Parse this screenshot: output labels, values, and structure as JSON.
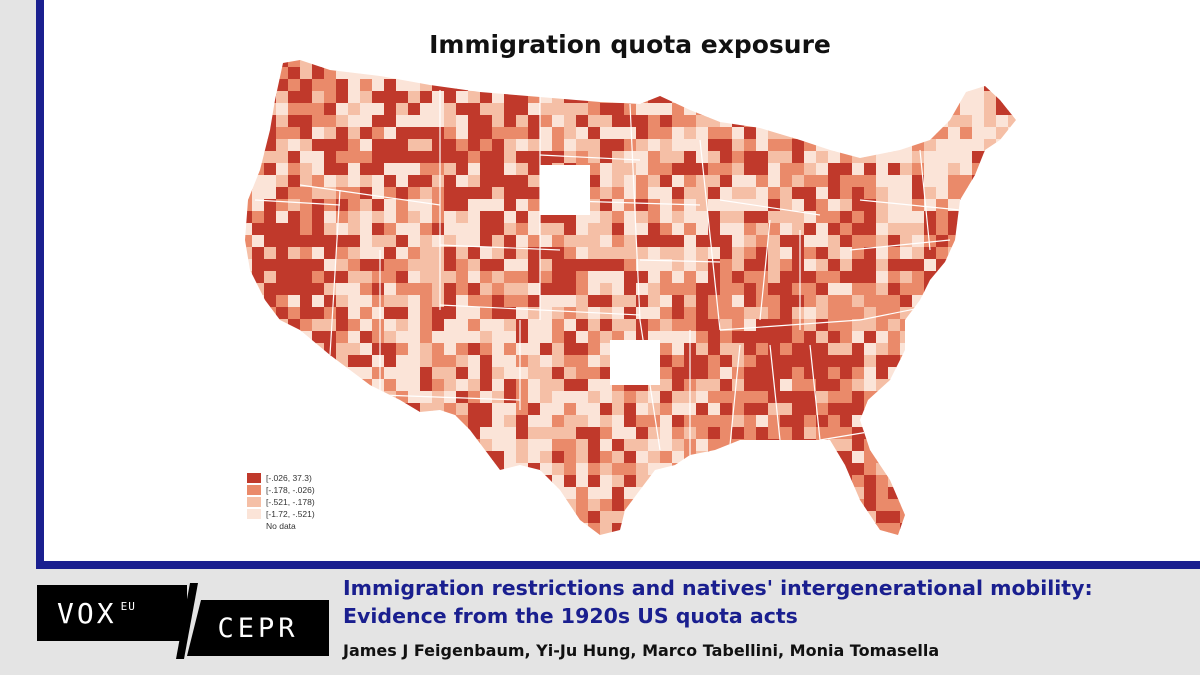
{
  "map": {
    "title": "Immigration quota exposure",
    "legend": [
      {
        "label": "[-.026, 37.3)",
        "color": "#c0392b"
      },
      {
        "label": "[-.178, -.026)",
        "color": "#ea8a6a"
      },
      {
        "label": "[-.521, -.178)",
        "color": "#f5bfa6"
      },
      {
        "label": "[-1.72, -.521)",
        "color": "#fbe4d8"
      },
      {
        "label": "No data",
        "color": "#ffffff"
      }
    ]
  },
  "branding": {
    "vox": "VOX",
    "eu": "EU",
    "cepr": "CEPR"
  },
  "article": {
    "headline_line1": "Immigration restrictions and natives' intergenerational mobility:",
    "headline_line2": "Evidence from the 1920s US quota acts",
    "authors": "James J Feigenbaum, Yi-Ju Hung, Marco Tabellini, Monia Tomasella"
  },
  "colors": {
    "frame": "#1a1f8f",
    "headline": "#1a1f8f"
  }
}
